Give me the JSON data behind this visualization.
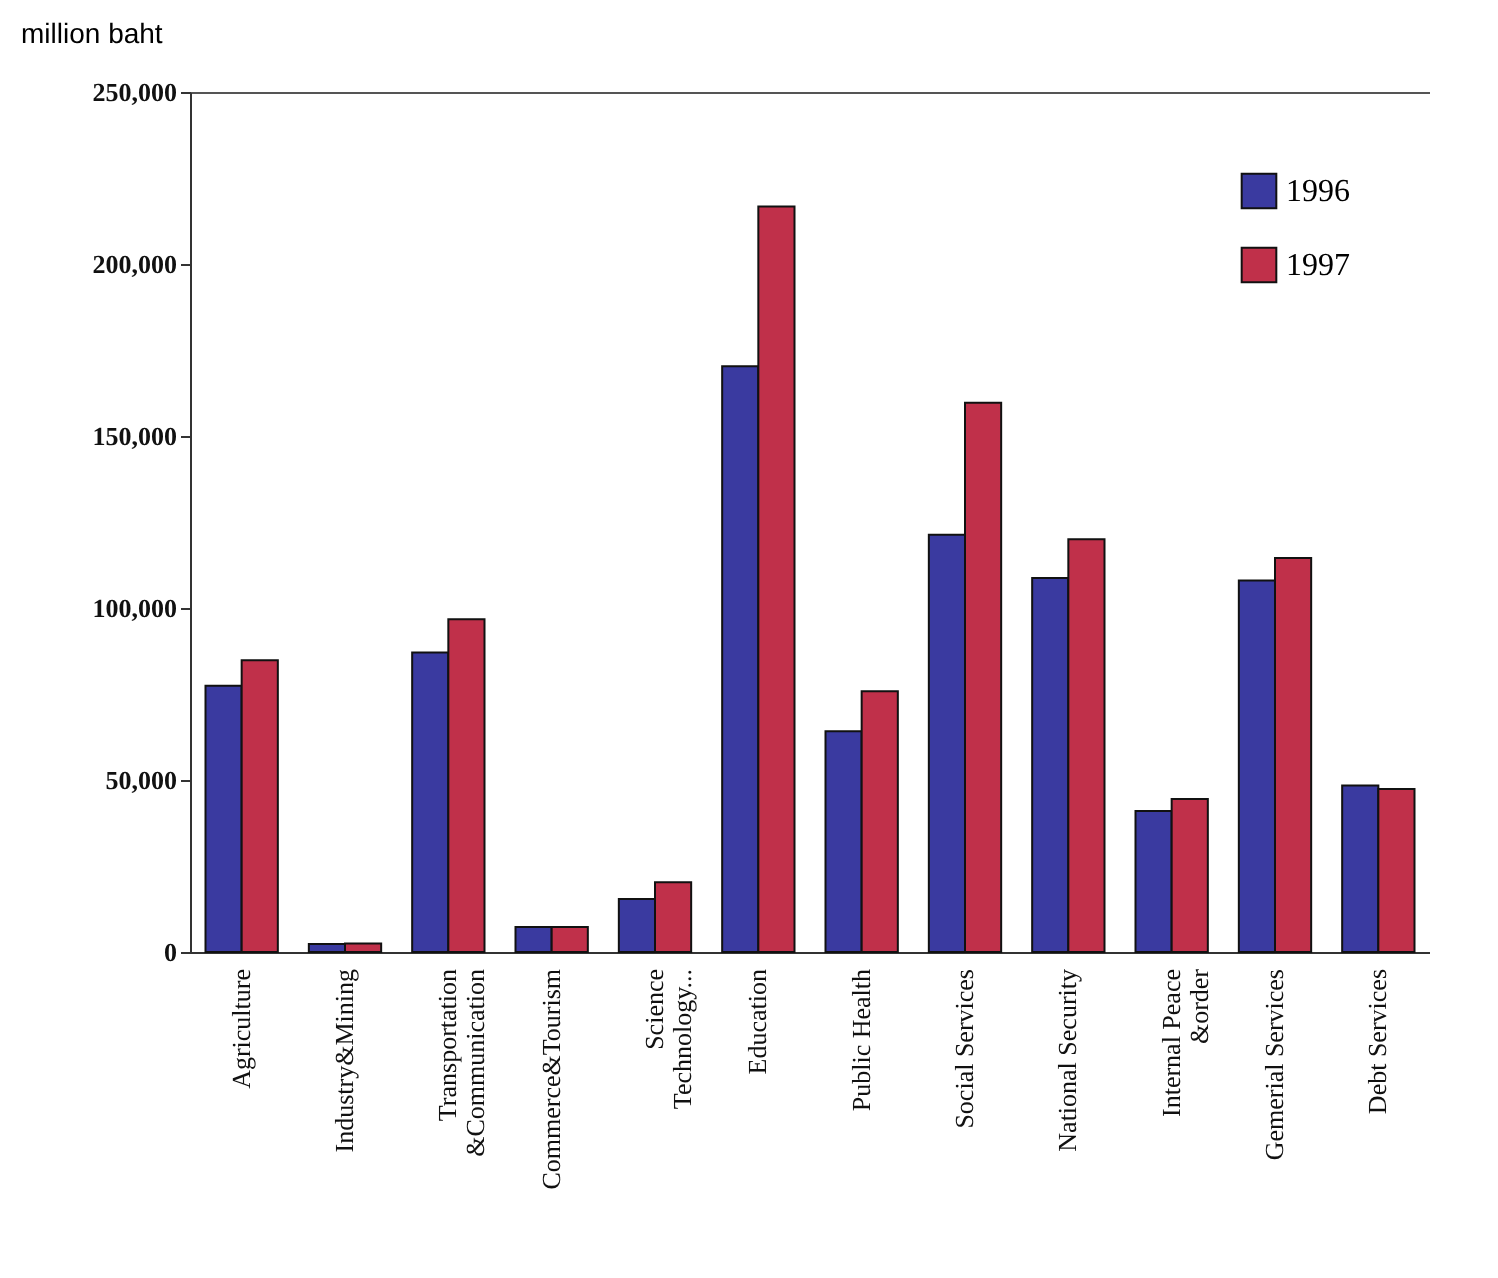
{
  "chart_data": {
    "type": "bar",
    "ylabel": "million baht",
    "categories": [
      "Agriculture",
      "Industry&Mining",
      "Transportation\n&Communication",
      "Commerce&Tourism",
      "Science\nTechnology...",
      "Education",
      "Public Health",
      "Social Services",
      "National Security",
      "Internal Peace\n&order",
      "Gemerial Services",
      "Debt Services"
    ],
    "series": [
      {
        "name": "1996",
        "color": "#3a3aa0",
        "values": [
          77400,
          2300,
          87100,
          7300,
          15400,
          170300,
          64200,
          121300,
          108700,
          41000,
          108000,
          48400
        ]
      },
      {
        "name": "1997",
        "color": "#c0304a",
        "values": [
          84800,
          2500,
          96700,
          7300,
          20300,
          216700,
          75800,
          159700,
          120000,
          44500,
          114500,
          47400
        ]
      }
    ],
    "ylim": [
      0,
      250000
    ],
    "yticks": [
      0,
      {
        "value": 50000,
        "label": "50,000"
      },
      {
        "value": 100000,
        "label": "100,000"
      },
      {
        "value": 150000,
        "label": "150,000"
      },
      {
        "value": 200000,
        "label": "200,000"
      },
      {
        "value": 250000,
        "label": "250,000"
      }
    ],
    "grid": false,
    "legend": "top right"
  }
}
